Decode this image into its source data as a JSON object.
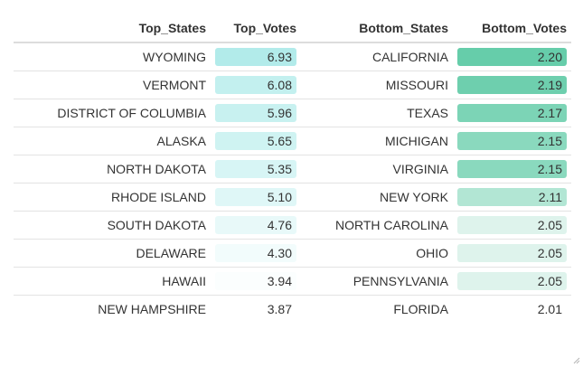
{
  "table": {
    "headers": {
      "top_states": "Top_States",
      "top_votes": "Top_Votes",
      "bottom_states": "Bottom_States",
      "bottom_votes": "Bottom_Votes"
    },
    "rows": [
      {
        "top_state": "WYOMING",
        "top_votes": "6.93",
        "top_color": "#b2ebea",
        "bottom_state": "CALIFORNIA",
        "bottom_votes": "2.20",
        "bottom_color": "#66cdaa"
      },
      {
        "top_state": "VERMONT",
        "top_votes": "6.08",
        "top_color": "#c3f0ef",
        "bottom_state": "MISSOURI",
        "bottom_votes": "2.19",
        "bottom_color": "#6ecfae"
      },
      {
        "top_state": "DISTRICT OF COLUMBIA",
        "top_votes": "5.96",
        "top_color": "#c8f1f0",
        "bottom_state": "TEXAS",
        "bottom_votes": "2.17",
        "bottom_color": "#7cd4b6"
      },
      {
        "top_state": "ALASKA",
        "top_votes": "5.65",
        "top_color": "#cff3f2",
        "bottom_state": "MICHIGAN",
        "bottom_votes": "2.15",
        "bottom_color": "#8ad9be"
      },
      {
        "top_state": "NORTH DAKOTA",
        "top_votes": "5.35",
        "top_color": "#d7f5f5",
        "bottom_state": "VIRGINIA",
        "bottom_votes": "2.15",
        "bottom_color": "#8ad9be"
      },
      {
        "top_state": "RHODE ISLAND",
        "top_votes": "5.10",
        "top_color": "#dff7f7",
        "bottom_state": "NEW YORK",
        "bottom_votes": "2.11",
        "bottom_color": "#b2e6d4"
      },
      {
        "top_state": "SOUTH DAKOTA",
        "top_votes": "4.76",
        "top_color": "#e8f9f9",
        "bottom_state": "NORTH CAROLINA",
        "bottom_votes": "2.05",
        "bottom_color": "#def3ec"
      },
      {
        "top_state": "DELAWARE",
        "top_votes": "4.30",
        "top_color": "#f2fcfc",
        "bottom_state": "OHIO",
        "bottom_votes": "2.05",
        "bottom_color": "#def3ec"
      },
      {
        "top_state": "HAWAII",
        "top_votes": "3.94",
        "top_color": "#fbfefe",
        "bottom_state": "PENNSYLVANIA",
        "bottom_votes": "2.05",
        "bottom_color": "#def3ec"
      },
      {
        "top_state": "NEW HAMPSHIRE",
        "top_votes": "3.87",
        "top_color": "#ffffff",
        "bottom_state": "FLORIDA",
        "bottom_votes": "2.01",
        "bottom_color": "#ffffff"
      }
    ]
  },
  "colors": {
    "header_border": "#dddddd",
    "row_border": "#e3e3e3",
    "text": "#333333"
  }
}
